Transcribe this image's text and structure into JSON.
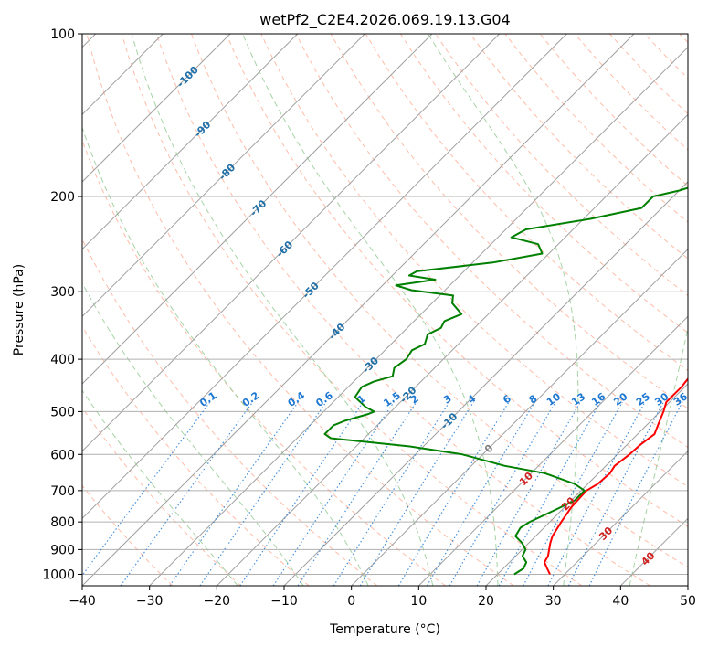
{
  "chart_data": {
    "type": "line",
    "title": "wetPf2_C2E4.2026.069.19.13.G04",
    "xlabel": "Temperature (°C)",
    "ylabel": "Pressure (hPa)",
    "xlim": [
      -40,
      50
    ],
    "ylim": [
      1050,
      100
    ],
    "y_scale": "log",
    "grid": true,
    "x_ticks": [
      "−40",
      "−30",
      "−20",
      "−10",
      "0",
      "10",
      "20",
      "30",
      "40",
      "50"
    ],
    "y_ticks": [
      "1000",
      "900",
      "800",
      "700",
      "600",
      "500",
      "400",
      "300",
      "200",
      "100"
    ],
    "series": [
      {
        "color": "#ff0000",
        "points": [
          [
            27.8,
            1000
          ],
          [
            26.5,
            975
          ],
          [
            25.2,
            950
          ],
          [
            24.8,
            925
          ],
          [
            24.0,
            900
          ],
          [
            23.2,
            875
          ],
          [
            22.5,
            850
          ],
          [
            21.7,
            800
          ],
          [
            21.0,
            750
          ],
          [
            20.8,
            700
          ],
          [
            21.5,
            680
          ],
          [
            21.7,
            650
          ],
          [
            21.3,
            630
          ],
          [
            21.8,
            600
          ],
          [
            22.0,
            575
          ],
          [
            22.5,
            550
          ],
          [
            21.5,
            525
          ],
          [
            20.5,
            500
          ],
          [
            19.5,
            480
          ],
          [
            19.5,
            450
          ],
          [
            19.0,
            420
          ],
          [
            18.3,
            400
          ],
          [
            16.0,
            370
          ],
          [
            14.0,
            350
          ],
          [
            11.0,
            325
          ],
          [
            8.5,
            300
          ],
          [
            5.8,
            275
          ],
          [
            3.5,
            250
          ],
          [
            1.3,
            225
          ],
          [
            -0.8,
            200
          ],
          [
            -2.5,
            180
          ],
          [
            -3.3,
            160
          ],
          [
            -3.0,
            145
          ],
          [
            -3.3,
            130
          ],
          [
            -4.5,
            120
          ],
          [
            -5.0,
            110
          ],
          [
            -4.2,
            103
          ],
          [
            -3.5,
            100
          ]
        ]
      },
      {
        "color": "#008000",
        "points": [
          [
            22.5,
            1000
          ],
          [
            23.0,
            975
          ],
          [
            22.5,
            950
          ],
          [
            21.0,
            925
          ],
          [
            20.5,
            900
          ],
          [
            19.0,
            875
          ],
          [
            17.0,
            850
          ],
          [
            16.5,
            820
          ],
          [
            17.0,
            800
          ],
          [
            19.0,
            760
          ],
          [
            20.5,
            730
          ],
          [
            20.5,
            700
          ],
          [
            18.0,
            680
          ],
          [
            12.0,
            650
          ],
          [
            5.0,
            630
          ],
          [
            -3.0,
            600
          ],
          [
            -12.0,
            580
          ],
          [
            -25.0,
            560
          ],
          [
            -26.5,
            550
          ],
          [
            -26.5,
            530
          ],
          [
            -25.5,
            520
          ],
          [
            -23.0,
            505
          ],
          [
            -22.5,
            500
          ],
          [
            -24.5,
            490
          ],
          [
            -27.5,
            470
          ],
          [
            -28.0,
            450
          ],
          [
            -27.0,
            440
          ],
          [
            -25.0,
            430
          ],
          [
            -26.0,
            415
          ],
          [
            -25.5,
            400
          ],
          [
            -26.0,
            385
          ],
          [
            -25.0,
            375
          ],
          [
            -26.0,
            360
          ],
          [
            -25.0,
            350
          ],
          [
            -25.5,
            340
          ],
          [
            -24.0,
            330
          ],
          [
            -27.0,
            315
          ],
          [
            -28.0,
            305
          ],
          [
            -35.0,
            298
          ],
          [
            -38.0,
            292
          ],
          [
            -33.0,
            285
          ],
          [
            -37.5,
            280
          ],
          [
            -37.0,
            275
          ],
          [
            -27.0,
            265
          ],
          [
            -21.0,
            255
          ],
          [
            -23.0,
            245
          ],
          [
            -28.0,
            238
          ],
          [
            -27.0,
            230
          ],
          [
            -19.0,
            220
          ],
          [
            -13.0,
            210
          ],
          [
            -13.0,
            200
          ],
          [
            -10.0,
            195
          ],
          [
            -8.0,
            190
          ],
          [
            -9.0,
            180
          ],
          [
            -8.0,
            170
          ],
          [
            -8.0,
            160
          ],
          [
            -11.0,
            150
          ],
          [
            -14.0,
            142
          ],
          [
            -11.0,
            137
          ],
          [
            -8.0,
            130
          ],
          [
            -4.5,
            120
          ],
          [
            -3.0,
            110
          ],
          [
            -1.0,
            103
          ],
          [
            0.0,
            100
          ]
        ]
      }
    ],
    "isotherms": {
      "color": "#a0a0a0",
      "values": [
        -140,
        -130,
        -120,
        -110,
        -100,
        -90,
        -80,
        -70,
        -60,
        -50,
        -40,
        -30,
        -20,
        -10,
        0,
        10,
        20,
        30,
        40,
        50
      ]
    },
    "dry_adiabats": {
      "color": "#ff9070",
      "theta_c": [
        -30,
        -20,
        -10,
        0,
        10,
        20,
        30,
        40,
        50,
        60,
        70,
        80,
        90,
        100,
        110,
        120,
        130,
        140,
        150,
        160,
        170,
        180,
        190,
        200,
        210,
        220,
        230
      ]
    },
    "moist_adiabats": {
      "color": "#90c890",
      "surface_temps_c": [
        -20,
        -10,
        0,
        10,
        20,
        30,
        40
      ]
    },
    "mixing_ratio_lines": {
      "color": "#1e78d2",
      "label_pressure_hpa": 480,
      "values": [
        0.1,
        0.2,
        0.4,
        0.6,
        1,
        1.5,
        2,
        3,
        4,
        6,
        8,
        10,
        13,
        16,
        20,
        25,
        30,
        36
      ],
      "labels": [
        "0.1",
        "0.2",
        "0.4",
        "0.6",
        "1",
        "1.5",
        "2",
        "3",
        "4",
        "6",
        "8",
        "10",
        "13",
        "16",
        "20",
        "25",
        "30",
        "36"
      ]
    },
    "isotherm_labels": {
      "color_cold": "#1f6fa8",
      "color_zero": "#808080",
      "color_warm": "#d02020",
      "items": [
        {
          "text": "-100",
          "t": -100,
          "p": 120
        },
        {
          "text": "-90",
          "t": -90,
          "p": 150
        },
        {
          "text": "-80",
          "t": -80,
          "p": 180
        },
        {
          "text": "-70",
          "t": -70,
          "p": 210
        },
        {
          "text": "-60",
          "t": -60,
          "p": 250
        },
        {
          "text": "-50",
          "t": -50,
          "p": 298
        },
        {
          "text": "-40",
          "t": -40,
          "p": 355
        },
        {
          "text": "-30",
          "t": -30,
          "p": 410
        },
        {
          "text": "-20",
          "t": -20,
          "p": 465
        },
        {
          "text": "-10",
          "t": -10,
          "p": 520
        },
        {
          "text": "0",
          "t": 0,
          "p": 585
        },
        {
          "text": "10",
          "t": 10,
          "p": 665
        },
        {
          "text": "20",
          "t": 20,
          "p": 740
        },
        {
          "text": "30",
          "t": 30,
          "p": 840
        },
        {
          "text": "40",
          "t": 40,
          "p": 935
        }
      ]
    }
  }
}
